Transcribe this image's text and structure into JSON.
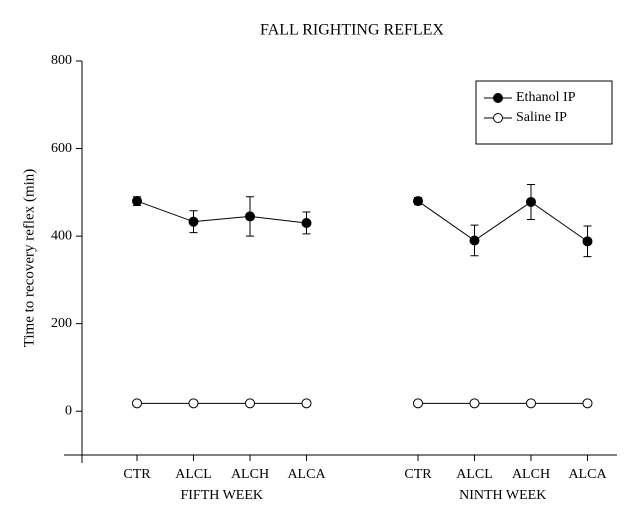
{
  "chart_data": {
    "type": "line",
    "title": "FALL RIGHTING REFLEX",
    "y_label": "Time to recovery reflex (min)",
    "groups": [
      {
        "name": "FIFTH WEEK",
        "categories": [
          "CTR",
          "ALCL",
          "ALCH",
          "ALCA"
        ]
      },
      {
        "name": "NINTH WEEK",
        "categories": [
          "CTR",
          "ALCL",
          "ALCH",
          "ALCA"
        ]
      }
    ],
    "series": [
      {
        "name": "Ethanol IP",
        "color": "#000000",
        "filled": true,
        "values": [
          [
            480,
            433,
            445,
            430
          ],
          [
            480,
            390,
            478,
            388
          ]
        ],
        "errors": [
          [
            10,
            25,
            45,
            25
          ],
          [
            8,
            35,
            40,
            35
          ]
        ]
      },
      {
        "name": "Saline IP",
        "color": "#000000",
        "filled": false,
        "values": [
          [
            18,
            18,
            18,
            18
          ],
          [
            18,
            18,
            18,
            18
          ]
        ]
      }
    ],
    "ylim": [
      -100,
      800
    ],
    "yticks": [
      0,
      200,
      400,
      600,
      800
    ],
    "legend": "upper right"
  }
}
